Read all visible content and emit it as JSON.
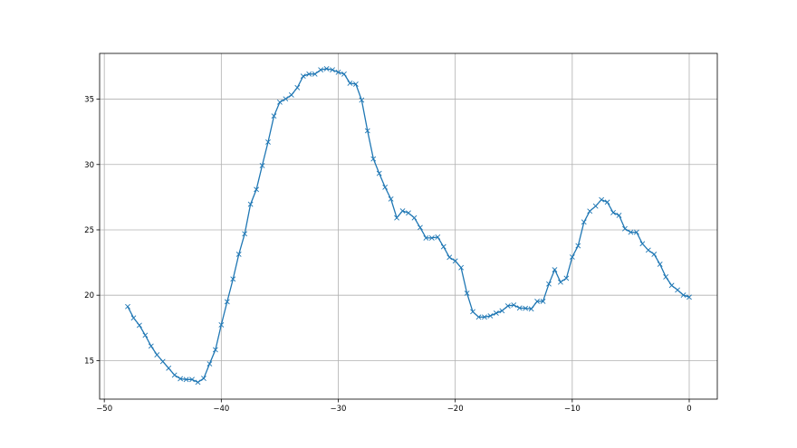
{
  "chart_data": {
    "type": "line",
    "title": "",
    "xlabel": "",
    "ylabel": "",
    "xlim": [
      -50.4,
      2.4
    ],
    "ylim": [
      12.05,
      38.5
    ],
    "grid": true,
    "marker": "x",
    "color": "#1f77b4",
    "xticks": [
      -50,
      -40,
      -30,
      -20,
      -10,
      0
    ],
    "yticks": [
      15,
      20,
      25,
      30,
      35
    ],
    "x_start": -48,
    "x_step": 0.5,
    "series": [
      {
        "values": [
          19.13,
          18.26,
          17.7,
          16.94,
          16.11,
          15.44,
          14.93,
          14.42,
          13.89,
          13.61,
          13.55,
          13.55,
          13.34,
          13.64,
          14.75,
          15.83,
          17.73,
          19.5,
          21.24,
          23.13,
          24.7,
          26.96,
          28.09,
          29.92,
          31.72,
          33.71,
          34.77,
          35.02,
          35.32,
          35.88,
          36.76,
          36.92,
          36.92,
          37.24,
          37.33,
          37.24,
          37.06,
          36.92,
          36.22,
          36.15,
          34.93,
          32.58,
          30.43,
          29.32,
          28.26,
          27.36,
          25.92,
          26.45,
          26.29,
          25.92,
          25.18,
          24.38,
          24.38,
          24.45,
          23.71,
          22.9,
          22.62,
          22.11,
          20.15,
          18.74,
          18.33,
          18.33,
          18.42,
          18.63,
          18.81,
          19.18,
          19.25,
          19.02,
          19.0,
          18.95,
          19.53,
          19.53,
          20.86,
          21.95,
          21.0,
          21.3,
          22.92,
          23.78,
          25.6,
          26.43,
          26.82,
          27.31,
          27.12,
          26.32,
          26.11,
          25.09,
          24.82,
          24.82,
          23.94,
          23.45,
          23.13,
          22.37,
          21.4,
          20.75,
          20.4,
          20.01,
          19.85
        ]
      }
    ]
  }
}
